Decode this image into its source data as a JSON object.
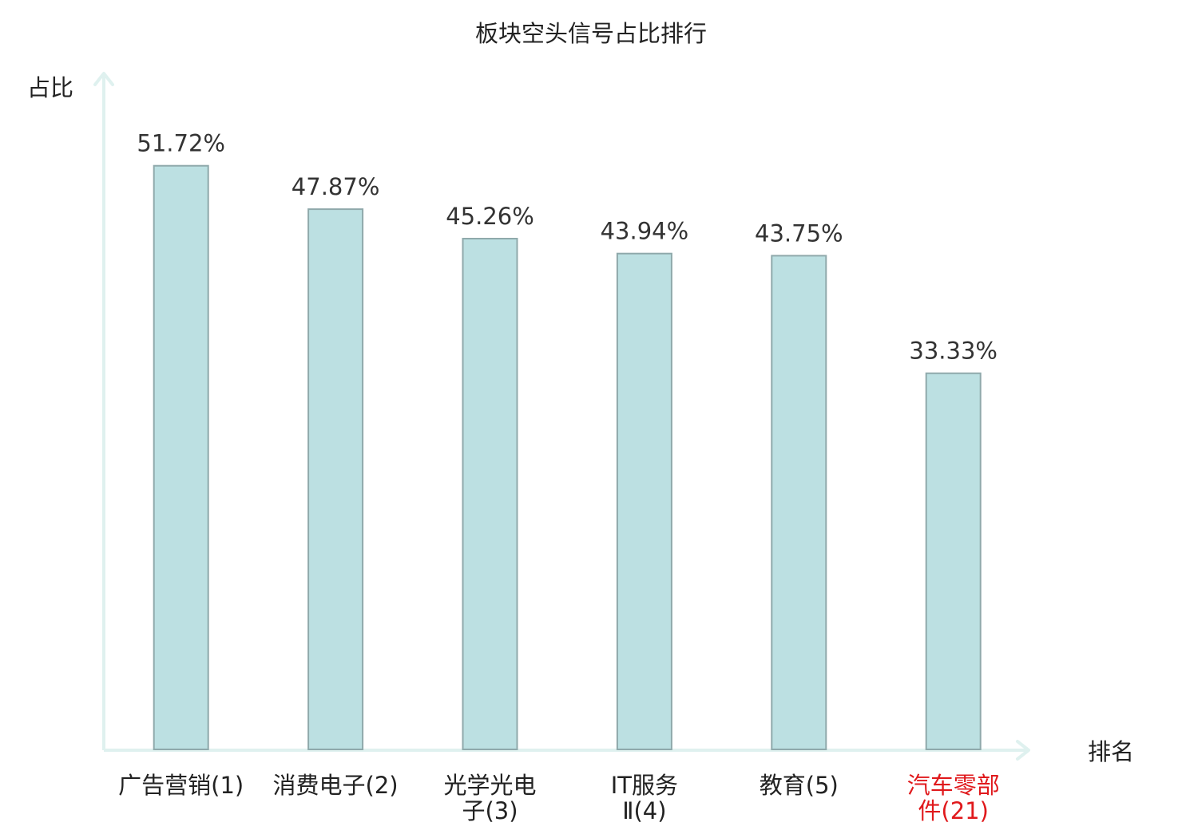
{
  "chart_data": {
    "type": "bar",
    "title": "板块空头信号占比排行",
    "ylabel": "占比",
    "xlabel": "排名",
    "categories": [
      [
        "广告营销(1)"
      ],
      [
        "消费电子(2)"
      ],
      [
        "光学光电",
        "子(3)"
      ],
      [
        "IT服务",
        "Ⅱ(4)"
      ],
      [
        "教育(5)"
      ],
      [
        "汽车零部",
        "件(21)"
      ]
    ],
    "values": [
      51.72,
      47.87,
      45.26,
      43.94,
      43.75,
      33.33
    ],
    "value_labels": [
      "51.72%",
      "47.87%",
      "45.26%",
      "43.94%",
      "43.75%",
      "33.33%"
    ],
    "highlight_index": 5,
    "grid": false
  },
  "colors": {
    "bar_fill": "#bce0e2",
    "bar_stroke": "#8fa9ab",
    "axis": "#dff1ef",
    "highlight_text": "#e0191c",
    "text": "#222222"
  }
}
